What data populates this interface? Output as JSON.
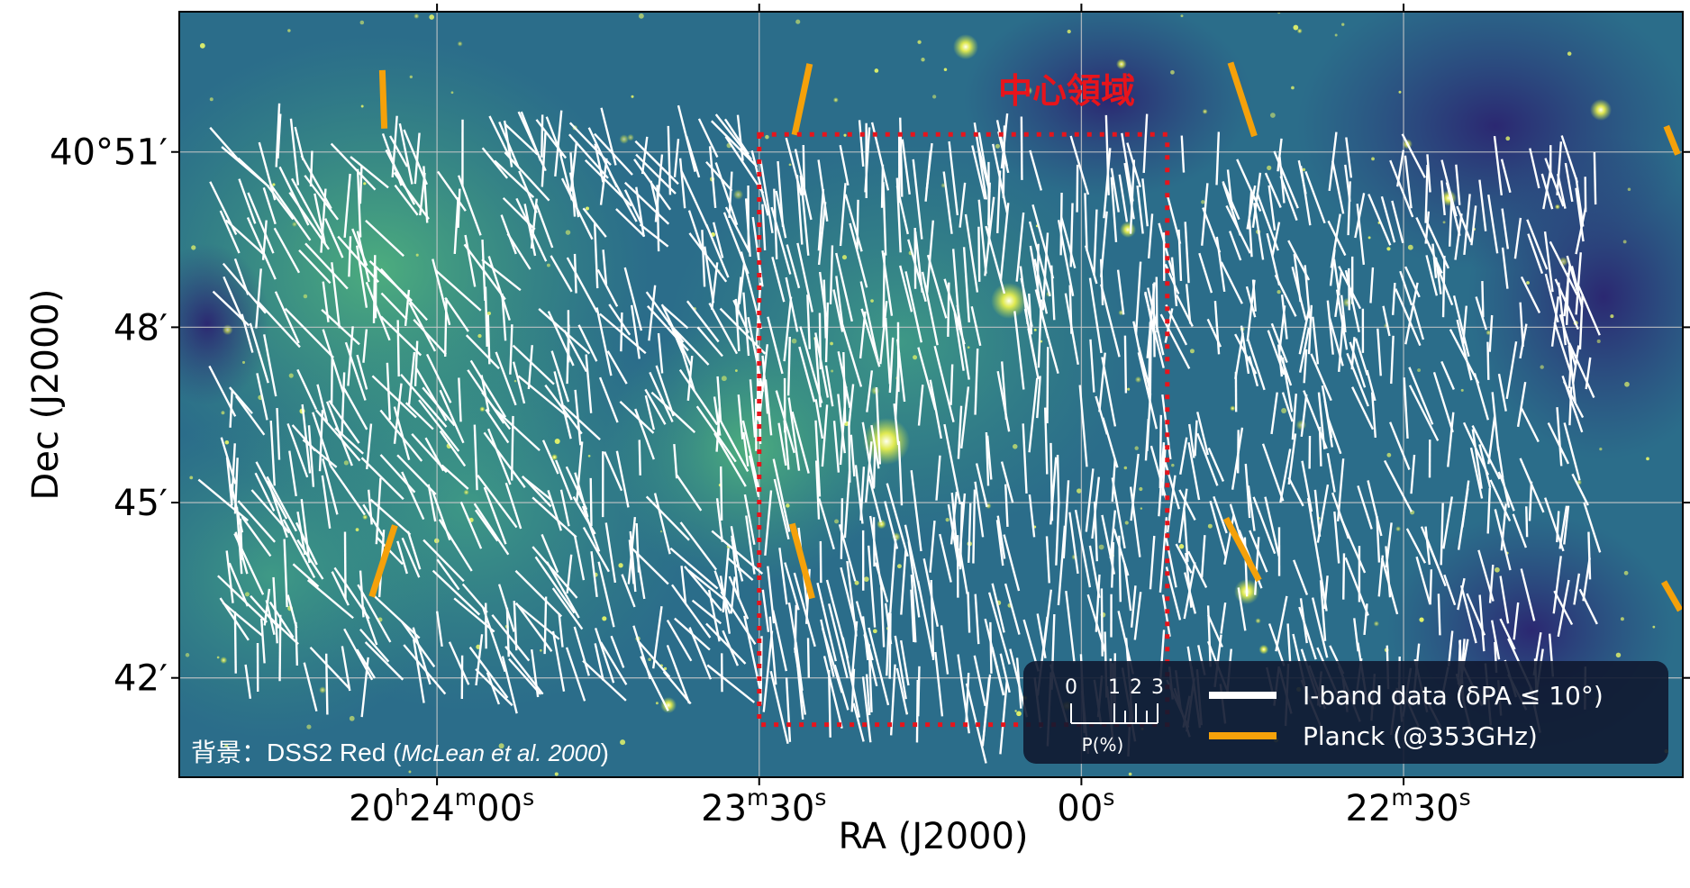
{
  "chart_data": {
    "type": "scatter",
    "xlabel": "RA (J2000)",
    "ylabel": "Dec (J2000)",
    "x_ticks": [
      {
        "h": "20",
        "hs": "h",
        "m": "24",
        "ms": "m",
        "s": "00",
        "ss": "s"
      },
      {
        "h": "",
        "hs": "",
        "m": "23",
        "ms": "m",
        "s": "30",
        "ss": "s"
      },
      {
        "h": "",
        "hs": "",
        "m": "",
        "ms": "",
        "s": "00",
        "ss": "s"
      },
      {
        "h": "",
        "hs": "",
        "m": "22",
        "ms": "m",
        "s": "30",
        "ss": "s"
      }
    ],
    "x_tick_seconds": [
      1440,
      1410,
      1380,
      1350
    ],
    "xlim_seconds": [
      1464,
      1324
    ],
    "y_ticks": [
      "40°51′",
      "48′",
      "45′",
      "42′"
    ],
    "y_tick_arcmin": [
      51,
      48,
      45,
      42
    ],
    "ylim_arcmin": [
      40.3,
      53.4
    ],
    "grid": true,
    "background_credit": "背景：DSS2 Red (",
    "background_credit_ref": "McLean et al. 2000",
    "background_credit_end": ")",
    "region_label": "中心領域",
    "region": {
      "ra_range": [
        1410,
        1372
      ],
      "dec_range": [
        41.2,
        51.3
      ]
    },
    "legend": {
      "scale_ticks": [
        "0",
        "1",
        "2",
        "3"
      ],
      "scale_label": "P(%)",
      "series_labels": [
        "I-band data (δPA ≤ 10°)",
        "Planck (@353GHz)"
      ]
    },
    "series": [
      {
        "name": "I-band data (δPA ≤ 10°)",
        "color": "#ffffff"
      },
      {
        "name": "Planck (@353GHz)",
        "color": "#f5a10a"
      }
    ],
    "planck_vectors": [
      {
        "ra": 1445,
        "dec": 51.9,
        "pa": -2,
        "p": 2.5
      },
      {
        "ra": 1406,
        "dec": 51.9,
        "pa": 12,
        "p": 3.1
      },
      {
        "ra": 1365,
        "dec": 51.9,
        "pa": -18,
        "p": 3.3
      },
      {
        "ra": 1325,
        "dec": 51.2,
        "pa": -22,
        "p": 1.3
      },
      {
        "ra": 1445,
        "dec": 44.0,
        "pa": 18,
        "p": 3.2
      },
      {
        "ra": 1406,
        "dec": 44.0,
        "pa": -15,
        "p": 3.3
      },
      {
        "ra": 1365,
        "dec": 44.2,
        "pa": -28,
        "p": 3.0
      },
      {
        "ra": 1325,
        "dec": 43.4,
        "pa": -30,
        "p": 1.4
      }
    ],
    "iband_field": [
      {
        "ra_range": [
          1460,
          1411
        ],
        "dec_range": [
          41.8,
          51.3
        ],
        "mean_pa": -22,
        "pa_spread": 30,
        "mean_p": 2.2
      },
      {
        "ra_range": [
          1411,
          1372
        ],
        "dec_range": [
          41.2,
          51.2
        ],
        "mean_pa": -5,
        "pa_spread": 12,
        "mean_p": 2.6
      },
      {
        "ra_range": [
          1372,
          1332
        ],
        "dec_range": [
          41.4,
          51.0
        ],
        "mean_pa": -8,
        "pa_spread": 20,
        "mean_p": 2.0
      }
    ]
  },
  "colors": {
    "sky_base": "#2b6d8a",
    "sky_bright": "#3fa67e",
    "sky_dark": "#2a2a74",
    "grid": "#c8c8c8",
    "region": "#e8141b",
    "legend_bg": "#0f1830"
  }
}
